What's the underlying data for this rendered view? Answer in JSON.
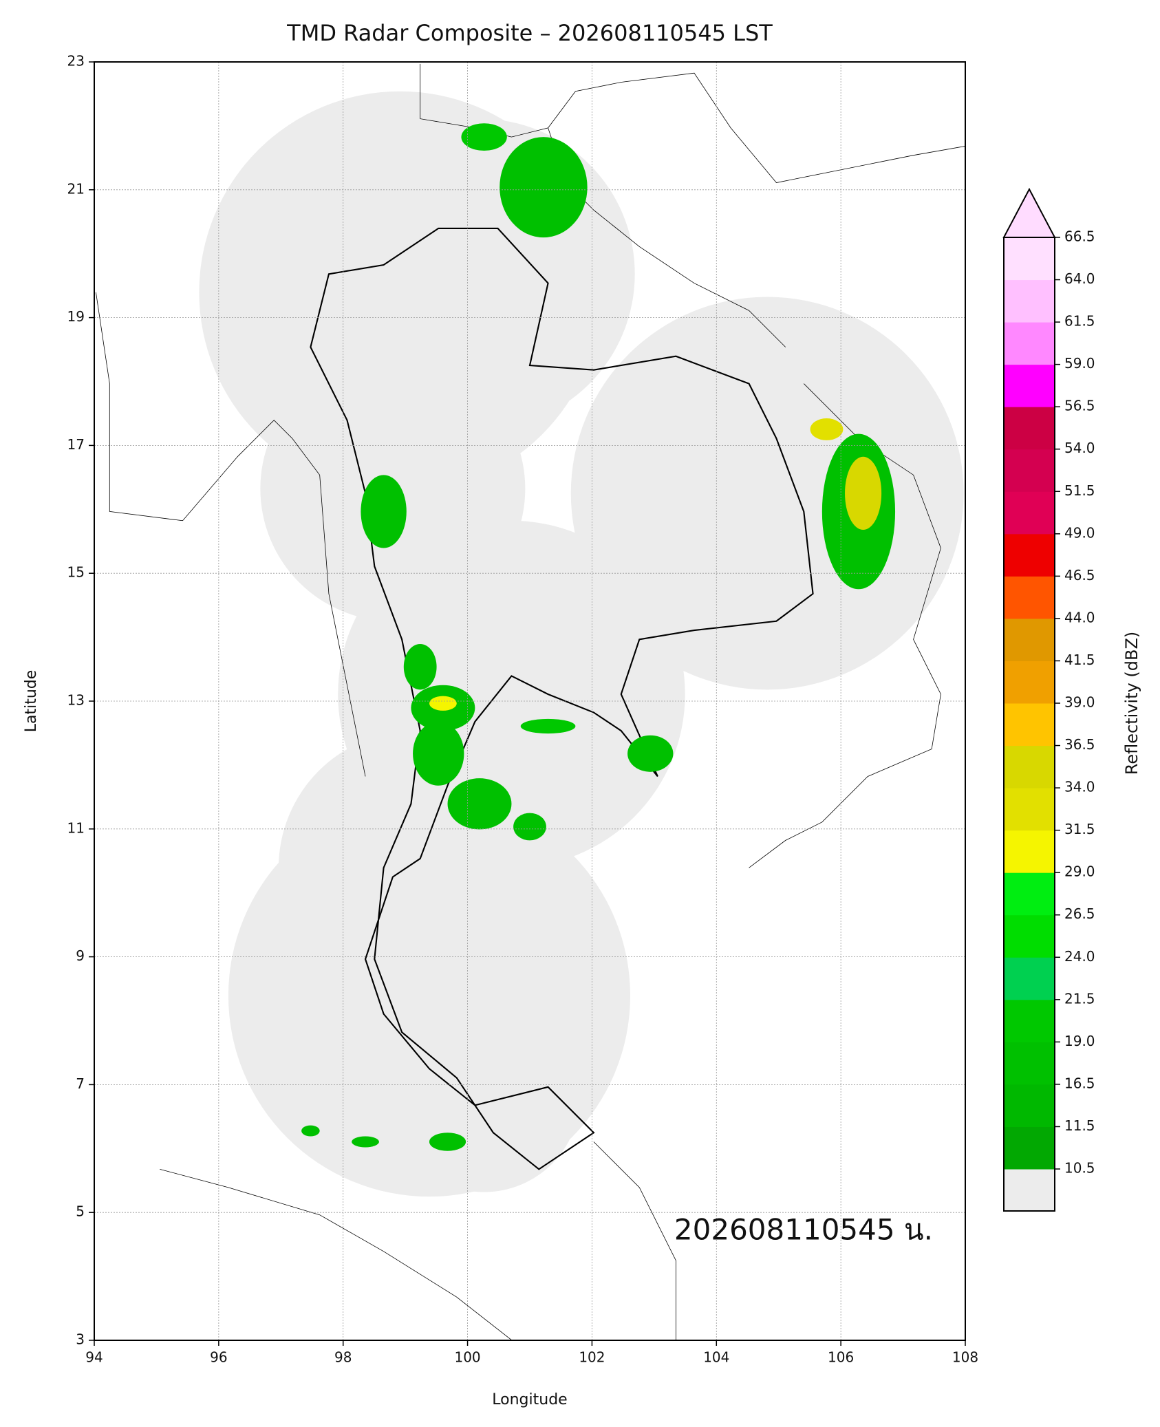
{
  "chart_data": {
    "type": "map",
    "title": "TMD Radar Composite – 202608110545 LST",
    "xlabel": "Longitude",
    "ylabel": "Latitude",
    "annotation": "202608110545 น.",
    "xlim": [
      94,
      108
    ],
    "ylim": [
      3,
      23
    ],
    "xticks": [
      94,
      96,
      98,
      100,
      102,
      104,
      106,
      108
    ],
    "yticks": [
      3,
      5,
      7,
      9,
      11,
      13,
      15,
      17,
      19,
      21,
      23
    ],
    "grid": true,
    "colorbar": {
      "label": "Reflectivity (dBZ)",
      "under_color": "#ececec",
      "over_color": "#ffdcff",
      "levels": [
        10.5,
        11.5,
        16.5,
        {
          "value": 19,
          "label": "19.0"
        },
        21.5,
        {
          "value": 24,
          "label": "24.0"
        },
        26.5,
        {
          "value": 29,
          "label": "29.0"
        },
        31.5,
        {
          "value": 34,
          "label": "34.0"
        },
        36.5,
        {
          "value": 39,
          "label": "39.0"
        },
        41.5,
        {
          "value": 44,
          "label": "44.0"
        },
        46.5,
        {
          "value": 49,
          "label": "49.0"
        },
        51.5,
        {
          "value": 54,
          "label": "54.0"
        },
        56.5,
        {
          "value": 59,
          "label": "59.0"
        },
        61.5,
        {
          "value": 64,
          "label": "64.0"
        },
        66.5
      ],
      "colors": [
        "#02a802",
        "#00b800",
        "#00c000",
        "#00c800",
        "#00d050",
        "#00dd00",
        "#00ee11",
        "#f5f500",
        "#e2e000",
        "#d8d800",
        "#ffc400",
        "#f0a000",
        "#e09800",
        "#ff5500",
        "#ee0000",
        "#e00055",
        "#d40050",
        "#cc0044",
        "#ff00ff",
        "#ff88ff",
        "#ffc0ff",
        "#ffe0ff"
      ]
    }
  }
}
